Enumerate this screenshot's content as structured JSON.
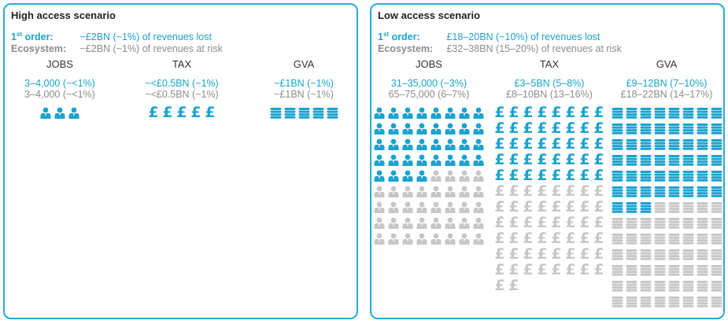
{
  "high": {
    "title": "High access scenario",
    "first_order_label": "1st order:",
    "first_order_value": "~£2BN (~1%) of revenues lost",
    "ecosystem_label": "Ecosystem:",
    "ecosystem_value": "~£2BN (~1%) of revenues at risk",
    "columns": [
      {
        "key": "jobs",
        "head": "JOBS",
        "v1": "3–4,000 (~<1%)",
        "v2": "3–4,000 (~<1%)",
        "icon": "person-icon",
        "blue": 3,
        "grey": 0,
        "cols": 3
      },
      {
        "key": "tax",
        "head": "TAX",
        "v1": "~<£0.5BN (~1%)",
        "v2": "~<£0.5BN (~1%)",
        "icon": "pound-icon",
        "blue": 5,
        "grey": 0,
        "cols": 5
      },
      {
        "key": "gva",
        "head": "GVA",
        "v1": "~£1BN (~1%)",
        "v2": "~£1BN (~1%)",
        "icon": "coins-icon",
        "blue": 5,
        "grey": 0,
        "cols": 5
      }
    ]
  },
  "low": {
    "title": "Low access scenario",
    "first_order_label": "1st order:",
    "first_order_value": "£18–20BN (~10%) of revenues lost",
    "ecosystem_label": "Ecosystem:",
    "ecosystem_value": "£32–38BN (15–20%) of revenues at risk",
    "columns": [
      {
        "key": "jobs",
        "head": "JOBS",
        "v1": "31–35,000 (~3%)",
        "v2": "65–75,000 (6–7%)",
        "icon": "person-icon",
        "blue": 36,
        "grey": 36,
        "cols": 8
      },
      {
        "key": "tax",
        "head": "TAX",
        "v1": "£3–5BN (5–8%)",
        "v2": "£8–10BN (13–16%)",
        "icon": "pound-icon",
        "blue": 40,
        "grey": 50,
        "cols": 8
      },
      {
        "key": "gva",
        "head": "GVA",
        "v1": "£9–12BN (7–10%)",
        "v2": "£18–22BN (14–17%)",
        "icon": "coins-icon",
        "blue": 51,
        "grey": 53,
        "cols": 8
      }
    ]
  },
  "colors": {
    "accent": "#1aa3cf",
    "muted": "#c7c7c7",
    "border": "#29a9d2"
  }
}
